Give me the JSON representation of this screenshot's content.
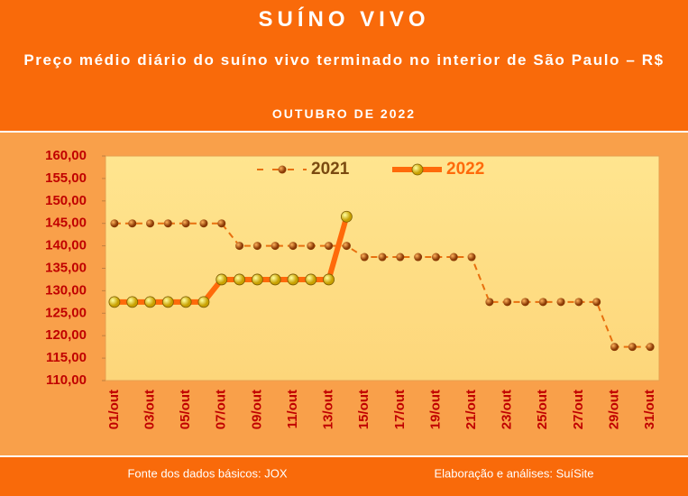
{
  "chart_data": {
    "type": "line",
    "title": "SUÍNO VIVO",
    "subtitle": "Preço médio diário do suíno vivo terminado no interior de São Paulo – R$",
    "period": "OUTUBRO DE 2022",
    "source": "Fonte dos dados básicos: JOX",
    "credit": "Elaboração e análises: SuíSite",
    "categories": [
      "01/out",
      null,
      "03/out",
      null,
      "05/out",
      null,
      "07/out",
      null,
      "09/out",
      null,
      "11/out",
      null,
      "13/out",
      null,
      "15/out",
      null,
      "17/out",
      null,
      "19/out",
      null,
      "21/out",
      null,
      "23/out",
      null,
      "25/out",
      null,
      "27/out",
      null,
      "29/out",
      null,
      "31/out"
    ],
    "series": [
      {
        "name": "2021",
        "color": "#e8700f",
        "marker_color": "#a0420a",
        "dashed": true,
        "values": [
          145,
          145,
          145,
          145,
          145,
          145,
          145,
          140,
          140,
          140,
          140,
          140,
          140,
          140,
          137.5,
          137.5,
          137.5,
          137.5,
          137.5,
          137.5,
          137.5,
          127.5,
          127.5,
          127.5,
          127.5,
          127.5,
          127.5,
          127.5,
          117.5,
          117.5,
          117.5
        ]
      },
      {
        "name": "2022",
        "color": "#ff6a0a",
        "marker_color": "#f5e000",
        "dashed": false,
        "values": [
          127.5,
          127.5,
          127.5,
          127.5,
          127.5,
          127.5,
          132.5,
          132.5,
          132.5,
          132.5,
          132.5,
          132.5,
          132.5,
          146.5,
          null,
          null,
          null,
          null,
          null,
          null,
          null,
          null,
          null,
          null,
          null,
          null,
          null,
          null,
          null,
          null,
          null
        ]
      }
    ],
    "ylim": [
      110,
      160
    ],
    "yticks": [
      {
        "value": 110,
        "label": "110,00"
      },
      {
        "value": 115,
        "label": "115,00"
      },
      {
        "value": 120,
        "label": "120,00"
      },
      {
        "value": 125,
        "label": "125,00"
      },
      {
        "value": 130,
        "label": "130,00"
      },
      {
        "value": 135,
        "label": "135,00"
      },
      {
        "value": 140,
        "label": "140,00"
      },
      {
        "value": 145,
        "label": "145,00"
      },
      {
        "value": 150,
        "label": "150,00"
      },
      {
        "value": 155,
        "label": "155,00"
      },
      {
        "value": 160,
        "label": "160,00"
      }
    ],
    "grid": false,
    "legend": "top"
  }
}
